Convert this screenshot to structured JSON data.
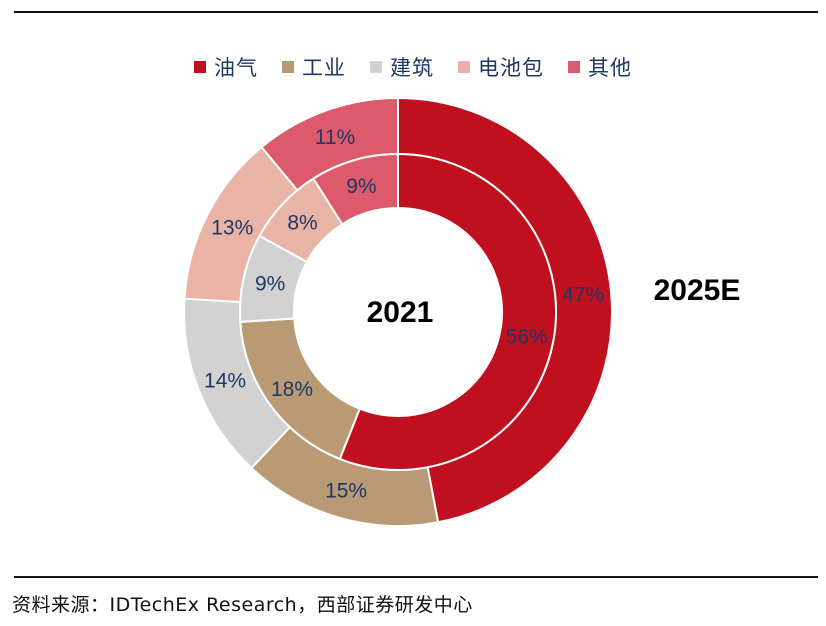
{
  "chart_data": {
    "type": "pie",
    "subtype": "nested-donut",
    "categories": [
      "油气",
      "工业",
      "建筑",
      "电池包",
      "其他"
    ],
    "colors": [
      "#c00f1e",
      "#b99a74",
      "#d2d2d2",
      "#e9b4a6",
      "#dc5a6b"
    ],
    "series": [
      {
        "name": "2021",
        "ring": "inner",
        "values": [
          56,
          18,
          9,
          8,
          9
        ]
      },
      {
        "name": "2025E",
        "ring": "outer",
        "values": [
          47,
          15,
          14,
          13,
          11
        ]
      }
    ],
    "legend_position": "top"
  },
  "labels": {
    "inner": "2021",
    "outer": "2025E"
  },
  "source": "资料来源：IDTechEx Research，西部证券研发中心"
}
